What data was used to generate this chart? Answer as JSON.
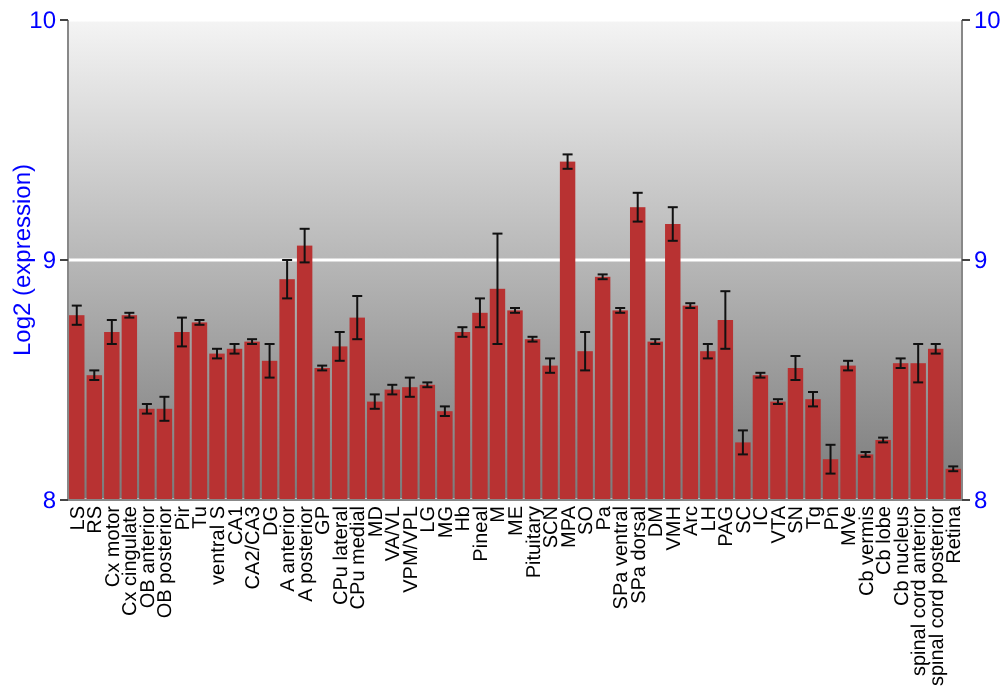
{
  "chart_data": {
    "type": "bar",
    "ylabel": "Log2 (expression)",
    "categories": [
      "LS",
      "RS",
      "Cx motor",
      "Cx cingulate",
      "OB anterior",
      "OB posterior",
      "Pir",
      "Tu",
      "ventral S",
      "CA1",
      "CA2/CA3",
      "DG",
      "A anterior",
      "A posterior",
      "GP",
      "CPu lateral",
      "CPu medial",
      "MD",
      "VA/VL",
      "VPM/VPL",
      "LG",
      "MG",
      "Hb",
      "Pineal",
      "M",
      "ME",
      "Pituitary",
      "SCN",
      "MPA",
      "SO",
      "Pa",
      "SPa ventral",
      "SPa dorsal",
      "DM",
      "VMH",
      "Arc",
      "LH",
      "PAG",
      "SC",
      "IC",
      "VTA",
      "SN",
      "Tg",
      "Pn",
      "MVe",
      "Cb vermis",
      "Cb lobe",
      "Cb nucleus",
      "spinal cord anterior",
      "spinal cord posterior",
      "Retina"
    ],
    "values": [
      8.77,
      8.52,
      8.7,
      8.77,
      8.38,
      8.38,
      8.7,
      8.74,
      8.61,
      8.63,
      8.66,
      8.58,
      8.92,
      9.06,
      8.55,
      8.64,
      8.76,
      8.41,
      8.46,
      8.47,
      8.48,
      8.37,
      8.7,
      8.78,
      8.88,
      8.79,
      8.67,
      8.56,
      9.41,
      8.62,
      8.93,
      8.79,
      9.22,
      8.66,
      9.15,
      8.81,
      8.62,
      8.75,
      8.24,
      8.52,
      8.41,
      8.55,
      8.42,
      8.17,
      8.56,
      8.19,
      8.25,
      8.57,
      8.57,
      8.63,
      8.13
    ],
    "errors": [
      0.04,
      0.02,
      0.05,
      0.01,
      0.02,
      0.05,
      0.06,
      0.01,
      0.02,
      0.02,
      0.01,
      0.07,
      0.08,
      0.07,
      0.01,
      0.06,
      0.09,
      0.03,
      0.02,
      0.04,
      0.01,
      0.02,
      0.02,
      0.06,
      0.23,
      0.01,
      0.01,
      0.03,
      0.03,
      0.08,
      0.01,
      0.01,
      0.06,
      0.01,
      0.07,
      0.01,
      0.03,
      0.12,
      0.05,
      0.01,
      0.01,
      0.05,
      0.03,
      0.06,
      0.02,
      0.01,
      0.01,
      0.02,
      0.08,
      0.02,
      0.01
    ],
    "color": "#b83232",
    "ylim": [
      8,
      10
    ],
    "yticks": [
      8,
      9,
      10
    ],
    "y2lim": [
      8,
      10
    ],
    "y2ticks": [
      8,
      9,
      10
    ],
    "grid": "y"
  }
}
